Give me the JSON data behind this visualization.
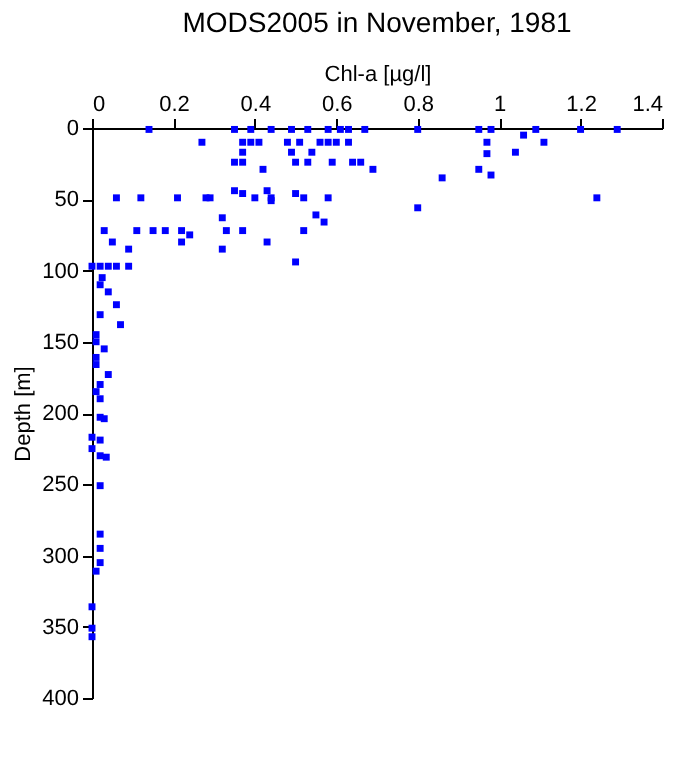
{
  "chart_data": {
    "type": "scatter",
    "title": "MODS2005 in November, 1981",
    "xlabel": "Chl-a [µg/l]",
    "ylabel": "Depth [m]",
    "xlim": [
      0,
      1.4
    ],
    "xticks": [
      0,
      0.2,
      0.4,
      0.6,
      0.8,
      1,
      1.2,
      1.4
    ],
    "ylim": [
      400,
      0
    ],
    "yticks": [
      0,
      50,
      100,
      150,
      200,
      250,
      300,
      350,
      400
    ],
    "grid": false,
    "marker": "square",
    "series": [
      {
        "color": "#0000ff",
        "x": [
          0.14,
          0.35,
          0.39,
          0.44,
          0.49,
          0.53,
          0.58,
          0.61,
          0.63,
          0.67,
          0.8,
          0.95,
          0.98,
          1.09,
          1.2,
          1.29,
          0.27,
          0.37,
          0.39,
          0.41,
          0.48,
          0.51,
          0.56,
          0.58,
          0.6,
          0.63,
          0.97,
          1.11,
          1.06,
          0.37,
          0.49,
          0.54,
          1.04,
          0.97,
          0.35,
          0.37,
          0.53,
          0.59,
          0.64,
          0.66,
          0.5,
          0.42,
          0.69,
          0.95,
          0.98,
          0.86,
          0.35,
          0.43,
          0.5,
          0.37,
          0.06,
          0.12,
          0.21,
          0.28,
          0.29,
          0.4,
          0.44,
          0.52,
          0.58,
          1.24,
          0.44,
          0.8,
          0.55,
          0.32,
          0.57,
          0.03,
          0.11,
          0.15,
          0.18,
          0.22,
          0.33,
          0.37,
          0.52,
          0.24,
          0.05,
          0.22,
          0.43,
          0.09,
          0.32,
          0.5,
          0.0,
          0.02,
          0.04,
          0.06,
          0.09,
          0.025,
          0.02,
          0.04,
          0.06,
          0.02,
          0.07,
          0.01,
          0.01,
          0.03,
          0.01,
          0.01,
          0.04,
          0.02,
          0.01,
          0.02,
          0.03,
          0.02,
          0.0,
          0.035,
          0.02,
          0.02,
          0.02,
          0.02,
          0.02,
          0.0,
          0.02,
          0.01,
          0.0,
          0.0,
          0.0
        ],
        "values": [
          1,
          1,
          1,
          1,
          1,
          1,
          1,
          1,
          1,
          1,
          1,
          1,
          1,
          1,
          1,
          1,
          10,
          10,
          10,
          10,
          10,
          10,
          10,
          10,
          10,
          10,
          10,
          10,
          5,
          17,
          17,
          17,
          17,
          18,
          24,
          24,
          24,
          24,
          24,
          24,
          24,
          29,
          29,
          29,
          33,
          35,
          44,
          44,
          46,
          46,
          49,
          49,
          49,
          49,
          49,
          49,
          49,
          49,
          49,
          49,
          51,
          56,
          61,
          63,
          66,
          72,
          72,
          72,
          72,
          72,
          72,
          72,
          72,
          75,
          80,
          80,
          80,
          85,
          85,
          94,
          97,
          97,
          97,
          97,
          97,
          105,
          110,
          115,
          124,
          131,
          138,
          145,
          150,
          155,
          161,
          166,
          173,
          180,
          185,
          190,
          204,
          203,
          217,
          231,
          230,
          219,
          251,
          285,
          295,
          225,
          305,
          311,
          336,
          351,
          357
        ]
      }
    ]
  }
}
